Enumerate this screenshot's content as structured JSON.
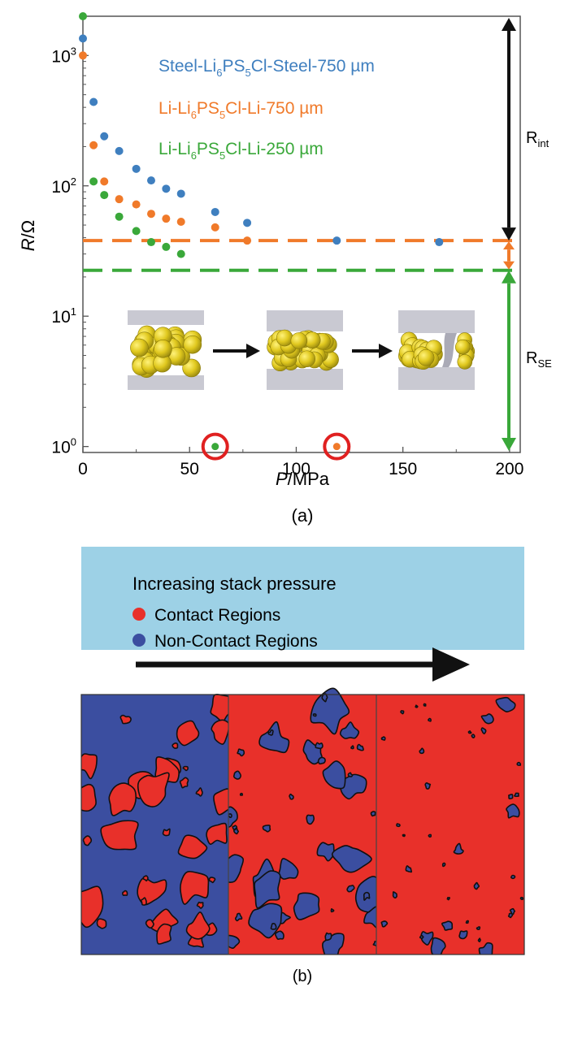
{
  "chart_data": [
    {
      "type": "scatter",
      "panel_label": "(a)",
      "xlabel": {
        "italic": "P",
        "rest": "/MPa"
      },
      "ylabel": {
        "italic": "R",
        "rest": "/Ω"
      },
      "xlim": [
        0,
        205
      ],
      "ylim": [
        0.9,
        2000
      ],
      "y_scale": "log",
      "x_ticks": [
        0,
        50,
        100,
        150,
        200
      ],
      "y_ticks": [
        {
          "value": 1,
          "base": "10",
          "exp": "0"
        },
        {
          "value": 10,
          "base": "10",
          "exp": "1"
        },
        {
          "value": 100,
          "base": "10",
          "exp": "2"
        },
        {
          "value": 1000,
          "base": "10",
          "exp": "3"
        }
      ],
      "legend_placement": "top-center",
      "series": [
        {
          "name": {
            "a": "Steel-Li",
            "sub1": "6",
            "b": "PS",
            "sub2": "5",
            "c": "Cl-Steel-750 µm"
          },
          "color": "#3f7fbf",
          "points": [
            [
              0,
              1350
            ],
            [
              5,
              440
            ],
            [
              10,
              240
            ],
            [
              17,
              185
            ],
            [
              25,
              135
            ],
            [
              32,
              110
            ],
            [
              39,
              95
            ],
            [
              46,
              87
            ],
            [
              62,
              63
            ],
            [
              77,
              52
            ],
            [
              119,
              38
            ],
            [
              167,
              37
            ]
          ],
          "reference_line": null
        },
        {
          "name": {
            "a": "Li-Li",
            "sub1": "6",
            "b": "PS",
            "sub2": "5",
            "c": "Cl-Li-750 µm"
          },
          "color": "#f07a2a",
          "points": [
            [
              0,
              1000
            ],
            [
              5,
              205
            ],
            [
              10,
              108
            ],
            [
              17,
              79
            ],
            [
              25,
              72
            ],
            [
              32,
              61
            ],
            [
              39,
              56
            ],
            [
              46,
              53
            ],
            [
              62,
              48
            ],
            [
              77,
              38
            ]
          ],
          "reference_line": 38
        },
        {
          "name": {
            "a": "Li-Li",
            "sub1": "6",
            "b": "PS",
            "sub2": "5",
            "c": "Cl-Li-250 µm"
          },
          "color": "#3aa83a",
          "points": [
            [
              0,
              2000
            ],
            [
              5,
              108
            ],
            [
              10,
              85
            ],
            [
              17,
              58
            ],
            [
              25,
              45
            ],
            [
              32,
              37
            ],
            [
              39,
              34
            ],
            [
              46,
              30
            ]
          ],
          "reference_line": 22.5
        }
      ],
      "circled_points": [
        {
          "x": 62,
          "y": 1,
          "color": "#3aa83a"
        },
        {
          "x": 119,
          "y": 1,
          "color": "#f07a2a"
        }
      ],
      "annotations": {
        "r_int": {
          "main": "R",
          "sub": "int",
          "from": 38,
          "to": 2000
        },
        "r_se": {
          "main": "R",
          "sub": "SE",
          "from": 0.9,
          "to": 22.5
        }
      }
    },
    {
      "type": "diagram",
      "panel_label": "(b)",
      "title": "Increasing stack pressure",
      "legend": [
        {
          "label": "Contact Regions",
          "color": "#e8302a"
        },
        {
          "label": "Non-Contact Regions",
          "color": "#3b4ea0"
        }
      ],
      "contact_fraction_estimate": [
        0.35,
        0.6,
        0.92
      ]
    }
  ]
}
